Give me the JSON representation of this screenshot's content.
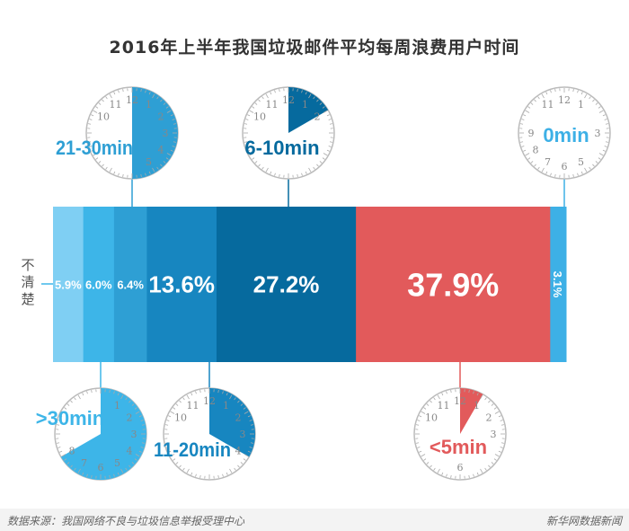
{
  "title": "2016年上半年我国垃圾邮件平均每周浪费用户时间",
  "footer": {
    "source": "数据来源：我国网络不良与垃圾信息举报受理中心",
    "brand": "新华网数据新闻"
  },
  "chart_data": {
    "type": "bar",
    "orientation": "horizontal-stacked",
    "title": "2016年上半年我国垃圾邮件平均每周浪费用户时间",
    "unit": "%",
    "series": [
      {
        "name": "不清楚",
        "value": 5.9,
        "label": "5.9%",
        "color": "#7fcff3",
        "clock_minutes": null,
        "clock_position": null
      },
      {
        "name": ">30min",
        "value": 6.0,
        "label": "6.0%",
        "color": "#3db5e8",
        "clock_minutes": 40,
        "clock_position": "bottom"
      },
      {
        "name": "21-30min",
        "value": 6.4,
        "label": "6.4%",
        "color": "#2e9fd4",
        "clock_minutes": 30,
        "clock_position": "top"
      },
      {
        "name": "11-20min",
        "value": 13.6,
        "label": "13.6%",
        "color": "#1786c0",
        "clock_minutes": 20,
        "clock_position": "bottom"
      },
      {
        "name": "6-10min",
        "value": 27.2,
        "label": "27.2%",
        "color": "#066a9e",
        "clock_minutes": 10,
        "clock_position": "top"
      },
      {
        "name": "<5min",
        "value": 37.9,
        "label": "37.9%",
        "color": "#e25a5b",
        "clock_minutes": 5,
        "clock_position": "bottom"
      },
      {
        "name": "0min",
        "value": 3.1,
        "label": "3.1%",
        "color": "#3db0e6",
        "clock_minutes": 0,
        "clock_position": "top"
      }
    ]
  }
}
